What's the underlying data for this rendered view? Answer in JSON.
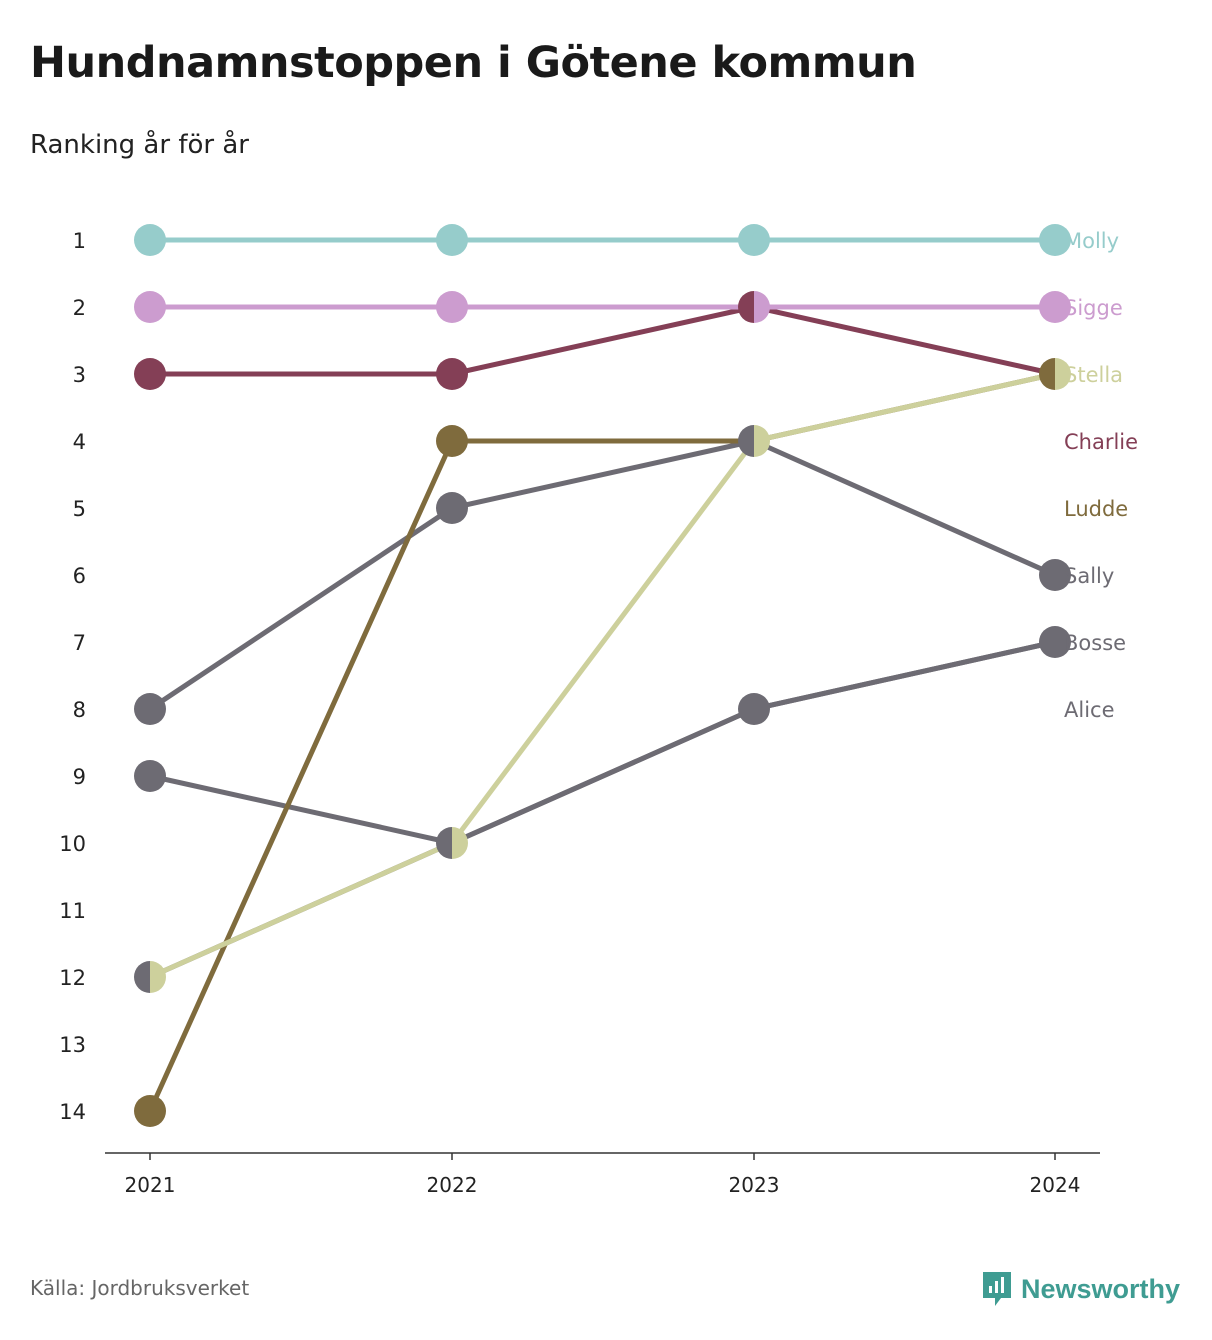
{
  "title": "Hundnamnstoppen i Götene kommun",
  "subtitle": "Ranking år för år",
  "source": "Källa: Jordbruksverket",
  "brand": "Newsworthy",
  "brand_icon": "newsworthy-logo-icon",
  "chart_data": {
    "type": "line",
    "title": "Hundnamnstoppen i Götene kommun",
    "subtitle": "Ranking år för år",
    "x": [
      "2021",
      "2022",
      "2023",
      "2024"
    ],
    "y_ticks": [
      "1",
      "2",
      "3",
      "4",
      "5",
      "6",
      "7",
      "8",
      "9",
      "10",
      "11",
      "12",
      "13",
      "14"
    ],
    "ylim": [
      1,
      14
    ],
    "y_inverted": true,
    "grid": false,
    "legend": "right-side labels",
    "series": [
      {
        "name": "Alice",
        "color": "#6d6b73",
        "values": [
          9,
          10,
          8,
          7
        ]
      },
      {
        "name": "Bosse",
        "color": "#6d6b73",
        "values": [
          8,
          5,
          4,
          6
        ]
      },
      {
        "name": "Sally",
        "color": "#6d6b73",
        "values": [
          12,
          10,
          8,
          7
        ]
      },
      {
        "name": "Ludde",
        "color": "#7f6b3d",
        "values": [
          14,
          4,
          4,
          3
        ]
      },
      {
        "name": "Charlie",
        "color": "#843f56",
        "values": [
          3,
          3,
          2,
          3
        ]
      },
      {
        "name": "Stella",
        "color": "#cdd09c",
        "values": [
          12,
          10,
          4,
          3
        ]
      },
      {
        "name": "Sigge",
        "color": "#cc9ccf",
        "values": [
          2,
          2,
          2,
          2
        ]
      },
      {
        "name": "Molly",
        "color": "#96cccb",
        "values": [
          1,
          1,
          1,
          1
        ]
      }
    ],
    "label_order": [
      "Molly",
      "Sigge",
      "Stella",
      "Charlie",
      "Ludde",
      "Sally",
      "Bosse",
      "Alice"
    ]
  }
}
